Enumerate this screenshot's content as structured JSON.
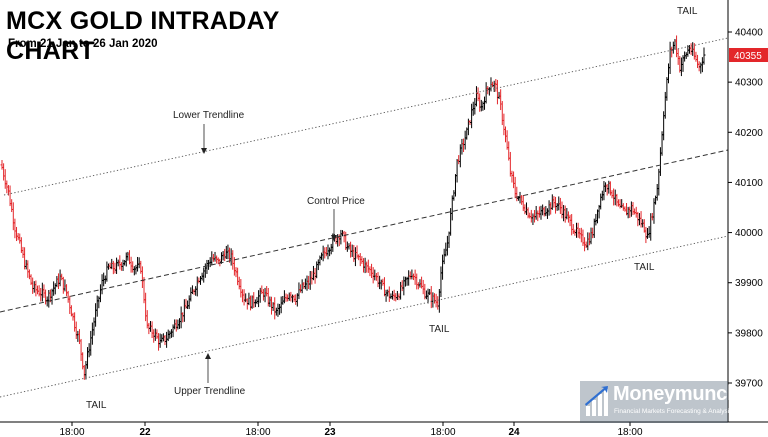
{
  "header": {
    "title": "MCX GOLD INTRADAY CHART",
    "subtitle": "From 21 Jan to 26 Jan 2020"
  },
  "logo": {
    "name": "Moneymunch",
    "tagline": "Financial Markets Forecasting & Analysis"
  },
  "colors": {
    "up_bar": "#000000",
    "down_bar": "#e3262a",
    "price_marker": "#e3262a",
    "trendline": "#555555"
  },
  "chart_data": {
    "type": "ohlc",
    "title": "MCX GOLD INTRADAY CHART",
    "subtitle": "From 21 Jan to 26 Jan 2020",
    "ylim": [
      3965,
      40430
    ],
    "y_ticks": [
      39700,
      39800,
      39900,
      40000,
      40100,
      40200,
      40300,
      40400
    ],
    "y_tick_labels": [
      "39700",
      "39800",
      "39900",
      "40000",
      "40100",
      "40200",
      "40300",
      "40400"
    ],
    "x_tick_labels": [
      "18:00",
      "22",
      "18:00",
      "23",
      "18:00",
      "24",
      "18:00"
    ],
    "grid": false,
    "last_price": 40355,
    "last_price_label": "40355",
    "trendlines": [
      {
        "name": "Lower Trendline",
        "style": "dotted",
        "label": "Lower Trendline"
      },
      {
        "name": "Control Price",
        "style": "dashed",
        "label": "Control Price"
      },
      {
        "name": "Upper Trendline",
        "style": "dotted",
        "label": "Upper Trendline"
      }
    ],
    "annotations": [
      "TAIL",
      "TAIL",
      "TAIL",
      "TAIL",
      "Lower Trendline",
      "Control Price",
      "Upper Trendline"
    ],
    "close_path": [
      [
        0,
        40130
      ],
      [
        4,
        40080
      ],
      [
        8,
        40010
      ],
      [
        14,
        39940
      ],
      [
        19,
        39890
      ],
      [
        24,
        39880
      ],
      [
        28,
        39870
      ],
      [
        32,
        39890
      ],
      [
        36,
        39910
      ],
      [
        40,
        39880
      ],
      [
        44,
        39830
      ],
      [
        48,
        39780
      ],
      [
        51,
        39720
      ],
      [
        55,
        39790
      ],
      [
        58,
        39840
      ],
      [
        62,
        39900
      ],
      [
        66,
        39930
      ],
      [
        70,
        39930
      ],
      [
        74,
        39940
      ],
      [
        78,
        39950
      ],
      [
        82,
        39930
      ],
      [
        86,
        39930
      ],
      [
        90,
        39810
      ],
      [
        94,
        39800
      ],
      [
        98,
        39780
      ],
      [
        102,
        39790
      ],
      [
        106,
        39810
      ],
      [
        110,
        39830
      ],
      [
        114,
        39850
      ],
      [
        118,
        39880
      ],
      [
        122,
        39910
      ],
      [
        126,
        39930
      ],
      [
        130,
        39950
      ],
      [
        134,
        39940
      ],
      [
        138,
        39960
      ],
      [
        142,
        39950
      ],
      [
        146,
        39910
      ],
      [
        150,
        39870
      ],
      [
        154,
        39860
      ],
      [
        158,
        39870
      ],
      [
        162,
        39880
      ],
      [
        166,
        39860
      ],
      [
        170,
        39840
      ],
      [
        174,
        39860
      ],
      [
        178,
        39880
      ],
      [
        182,
        39870
      ],
      [
        186,
        39890
      ],
      [
        190,
        39900
      ],
      [
        194,
        39920
      ],
      [
        198,
        39950
      ],
      [
        202,
        39970
      ],
      [
        206,
        39985
      ],
      [
        210,
        40000
      ],
      [
        214,
        39970
      ],
      [
        218,
        39955
      ],
      [
        222,
        39945
      ],
      [
        226,
        39930
      ],
      [
        230,
        39920
      ],
      [
        234,
        39900
      ],
      [
        238,
        39880
      ],
      [
        242,
        39870
      ],
      [
        246,
        39880
      ],
      [
        250,
        39900
      ],
      [
        254,
        39920
      ],
      [
        258,
        39900
      ],
      [
        262,
        39880
      ],
      [
        266,
        39870
      ],
      [
        270,
        39860
      ],
      [
        272,
        39920
      ],
      [
        276,
        39980
      ],
      [
        279,
        40060
      ],
      [
        282,
        40140
      ],
      [
        285,
        40170
      ],
      [
        288,
        40200
      ],
      [
        291,
        40240
      ],
      [
        294,
        40270
      ],
      [
        297,
        40250
      ],
      [
        300,
        40280
      ],
      [
        303,
        40300
      ],
      [
        306,
        40290
      ],
      [
        309,
        40250
      ],
      [
        312,
        40190
      ],
      [
        315,
        40120
      ],
      [
        318,
        40080
      ],
      [
        322,
        40060
      ],
      [
        326,
        40040
      ],
      [
        330,
        40030
      ],
      [
        334,
        40040
      ],
      [
        338,
        40050
      ],
      [
        342,
        40060
      ],
      [
        346,
        40050
      ],
      [
        350,
        40030
      ],
      [
        354,
        40010
      ],
      [
        358,
        39990
      ],
      [
        362,
        39980
      ],
      [
        366,
        40000
      ],
      [
        370,
        40060
      ],
      [
        374,
        40100
      ],
      [
        378,
        40080
      ],
      [
        382,
        40050
      ],
      [
        386,
        40040
      ],
      [
        390,
        40050
      ],
      [
        394,
        40030
      ],
      [
        398,
        40010
      ],
      [
        400,
        39990
      ],
      [
        403,
        40040
      ],
      [
        406,
        40090
      ],
      [
        408,
        40160
      ],
      [
        410,
        40240
      ],
      [
        412,
        40300
      ],
      [
        414,
        40360
      ],
      [
        417,
        40380
      ],
      [
        420,
        40330
      ],
      [
        423,
        40350
      ],
      [
        426,
        40370
      ],
      [
        429,
        40350
      ],
      [
        432,
        40330
      ],
      [
        435,
        40355
      ]
    ]
  }
}
